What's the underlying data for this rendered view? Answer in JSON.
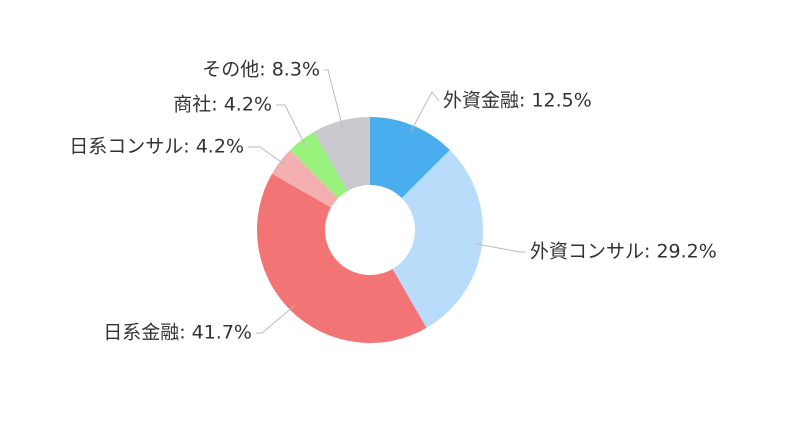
{
  "chart_data": {
    "type": "pie",
    "values": [
      12.5,
      29.2,
      41.7,
      4.2,
      4.2,
      8.3
    ],
    "value_labels": [
      "外資金融: 12.5%",
      "外資コンサル: 29.2%",
      "日系金融: 41.7%",
      "日系コンサル: 4.2%",
      "商社: 4.2%",
      "その他: 8.3%"
    ],
    "colors": [
      "#4aaeee",
      "#b9dcfb",
      "#f27475",
      "#f4b0b0",
      "#99f27c",
      "#c9c9cf"
    ]
  }
}
